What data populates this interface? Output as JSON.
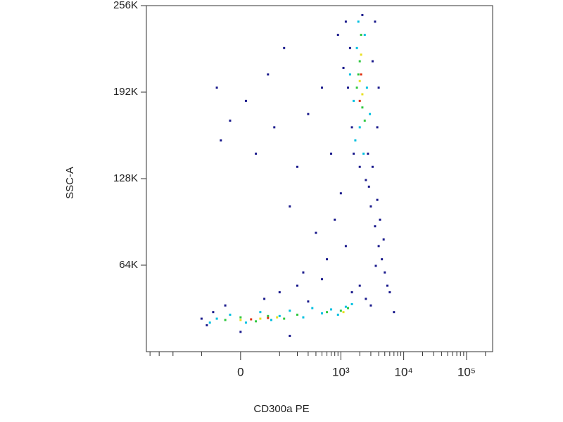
{
  "chart_data": {
    "type": "scatter",
    "xlabel": "CD300a PE",
    "ylabel": "SSC-A",
    "xscale": "biexponential",
    "xlim": [
      -800,
      260000
    ],
    "ylim": [
      0,
      262144
    ],
    "xticks": [
      0,
      {
        "value": 1000,
        "label": "10³"
      },
      {
        "value": 10000,
        "label": "10⁴"
      },
      {
        "value": 100000,
        "label": "10⁵"
      }
    ],
    "xminorticks": [
      -700,
      -500,
      -300,
      -100,
      100,
      200,
      300,
      400,
      500,
      600,
      700,
      800,
      900,
      2000,
      3000,
      4000,
      5000,
      6000,
      7000,
      8000,
      9000,
      20000,
      30000,
      40000,
      50000,
      60000,
      70000,
      80000,
      90000,
      200000
    ],
    "yticks": [
      {
        "value": 65536,
        "label": "64K"
      },
      {
        "value": 131072,
        "label": "128K"
      },
      {
        "value": 196608,
        "label": "192K"
      },
      {
        "value": 262144,
        "label": "256K"
      }
    ],
    "series": [
      {
        "color": "#1a1a8c",
        "x": [
          -40,
          -20,
          10,
          30,
          60,
          -50,
          80,
          120,
          200,
          300,
          150,
          400,
          600,
          250,
          800,
          1000,
          700,
          500,
          900,
          1200,
          2500,
          3000,
          3500,
          4000,
          4500,
          5000,
          3200,
          2800,
          4200,
          3800,
          5500,
          6000,
          4800,
          2700,
          3600,
          -80,
          -60,
          -30,
          0,
          50,
          100,
          200,
          300,
          500,
          1500,
          2000,
          2500,
          3000,
          7000,
          -100,
          150,
          1200,
          1400,
          1300,
          1500,
          1600,
          2200,
          3500,
          3200,
          4000,
          3800,
          1100,
          2000
        ],
        "y": [
          160000,
          175000,
          190000,
          150000,
          210000,
          200000,
          170000,
          230000,
          140000,
          180000,
          110000,
          90000,
          70000,
          60000,
          100000,
          120000,
          150000,
          200000,
          240000,
          80000,
          130000,
          110000,
          95000,
          80000,
          70000,
          60000,
          140000,
          125000,
          100000,
          115000,
          50000,
          45000,
          85000,
          150000,
          65000,
          20000,
          30000,
          35000,
          15000,
          40000,
          45000,
          50000,
          38000,
          55000,
          45000,
          50000,
          40000,
          35000,
          30000,
          25000,
          12000,
          250000,
          230000,
          200000,
          170000,
          150000,
          255000,
          250000,
          220000,
          200000,
          170000,
          215000,
          140000
        ]
      },
      {
        "color": "#00c0e0",
        "x": [
          -50,
          -20,
          10,
          40,
          70,
          100,
          150,
          250,
          350,
          500,
          700,
          900,
          1200,
          1500,
          -70,
          1400,
          1600,
          1800,
          2000,
          2400,
          2600,
          2900,
          1700,
          2300,
          1900
        ],
        "y": [
          25000,
          28000,
          22000,
          30000,
          24000,
          27000,
          31000,
          26000,
          33000,
          29000,
          32000,
          28000,
          34000,
          36000,
          22000,
          210000,
          190000,
          230000,
          170000,
          240000,
          200000,
          180000,
          160000,
          150000,
          250000
        ]
      },
      {
        "color": "#30c840",
        "x": [
          -30,
          0,
          30,
          60,
          120,
          200,
          600,
          1000,
          1300,
          1800,
          2000,
          2200,
          2100,
          2400,
          1900
        ],
        "y": [
          24000,
          26000,
          23000,
          27000,
          25000,
          28000,
          30000,
          31000,
          33000,
          200000,
          220000,
          185000,
          240000,
          175000,
          210000
        ]
      },
      {
        "color": "#e8e020",
        "x": [
          0,
          40,
          90,
          1100,
          2000,
          2200,
          2100
        ],
        "y": [
          24000,
          25000,
          26000,
          30000,
          205000,
          195000,
          225000
        ]
      },
      {
        "color": "#e03010",
        "x": [
          20,
          60,
          2100,
          2000
        ],
        "y": [
          24500,
          25500,
          210000,
          190000
        ]
      }
    ]
  }
}
